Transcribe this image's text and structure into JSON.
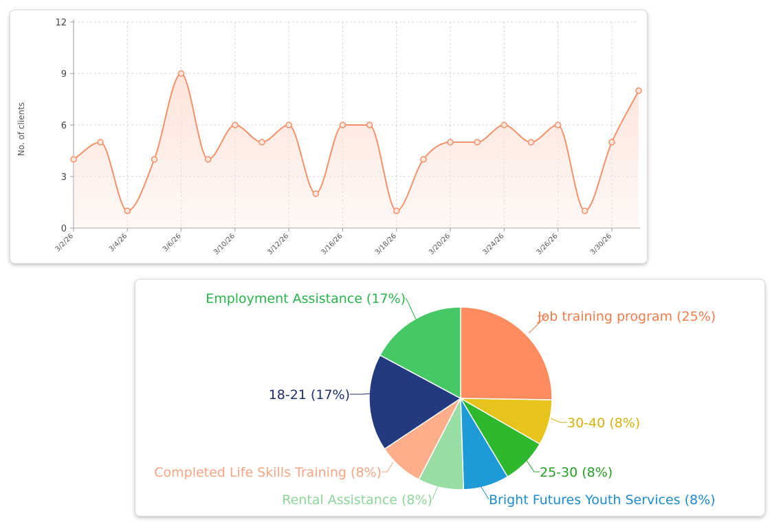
{
  "chart_data": [
    {
      "type": "line",
      "ylabel": "No. of clients",
      "xlabel": "",
      "ylim": [
        0,
        12
      ],
      "yticks": [
        0,
        3,
        6,
        9,
        12
      ],
      "x": [
        "3/2/26",
        "3/3/26",
        "3/4/26",
        "3/5/26",
        "3/6/26",
        "3/9/26",
        "3/10/26",
        "3/11/26",
        "3/12/26",
        "3/13/26",
        "3/16/26",
        "3/17/26",
        "3/18/26",
        "3/19/26",
        "3/20/26",
        "3/23/26",
        "3/24/26",
        "3/25/26",
        "3/26/26",
        "3/27/26",
        "3/30/26",
        "3/31/26"
      ],
      "xtick_labels": [
        "3/2/26",
        "3/4/26",
        "3/6/26",
        "3/10/26",
        "3/12/26",
        "3/16/26",
        "3/18/26",
        "3/20/26",
        "3/24/26",
        "3/26/26",
        "3/30/26"
      ],
      "values": [
        4,
        5,
        1,
        4,
        9,
        4,
        6,
        5,
        6,
        2,
        6,
        6,
        1,
        4,
        5,
        5,
        6,
        5,
        6,
        1,
        5,
        8
      ],
      "grid": true,
      "colors": {
        "line": "#f4916a",
        "fill": "#fde3d8"
      }
    },
    {
      "type": "pie",
      "slices": [
        {
          "label": "Job training program (25%)",
          "value": 25,
          "color": "#ff8c5f",
          "text_color": "#f07c4c"
        },
        {
          "label": "30-40 (8%)",
          "value": 8,
          "color": "#e6c41c",
          "text_color": "#d7b20a"
        },
        {
          "label": "25-30 (8%)",
          "value": 8,
          "color": "#2eb82e",
          "text_color": "#23a023"
        },
        {
          "label": "Bright Futures Youth Services (8%)",
          "value": 8,
          "color": "#1e9ad6",
          "text_color": "#1a8ccc"
        },
        {
          "label": "Rental Assistance (8%)",
          "value": 8,
          "color": "#98dea4",
          "text_color": "#8cd69a"
        },
        {
          "label": "Completed Life Skills Training (8%)",
          "value": 8,
          "color": "#ffae8c",
          "text_color": "#f6a582"
        },
        {
          "label": "18-21 (17%)",
          "value": 17,
          "color": "#233a7e",
          "text_color": "#1b2f6e"
        },
        {
          "label": "Employment Assistance (17%)",
          "value": 17,
          "color": "#46c866",
          "text_color": "#28b44a"
        }
      ]
    }
  ]
}
